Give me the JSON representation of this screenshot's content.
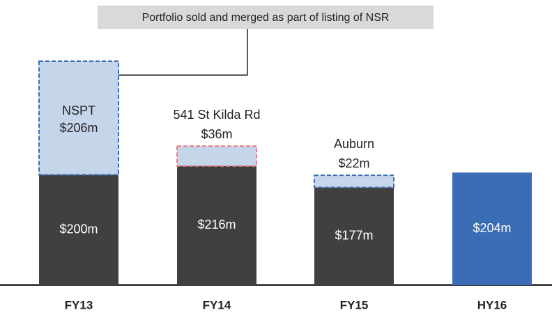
{
  "chart_data": {
    "type": "bar",
    "stacked": true,
    "categories": [
      "FY13",
      "FY14",
      "FY15",
      "HY16"
    ],
    "series": [
      {
        "values": [
          200,
          216,
          177,
          204
        ],
        "value_labels": [
          "$200m",
          "$216m",
          "$177m",
          "$204m"
        ],
        "colors": [
          "#404040",
          "#404040",
          "#404040",
          "#3a6db5"
        ]
      },
      {
        "values": [
          206,
          36,
          22,
          null
        ],
        "value_labels": [
          "$206m",
          "$36m",
          "$22m",
          null
        ],
        "point_names": [
          "NSPT",
          "541 St Kilda Rd",
          "Auburn",
          null
        ],
        "color": "#c5d5ea",
        "edge_colors": [
          "#3a6db5",
          "#e8808a",
          "#3a6db5",
          null
        ],
        "dashed": true
      }
    ],
    "annotation": "Portfolio sold and merged as part of listing of NSR"
  }
}
